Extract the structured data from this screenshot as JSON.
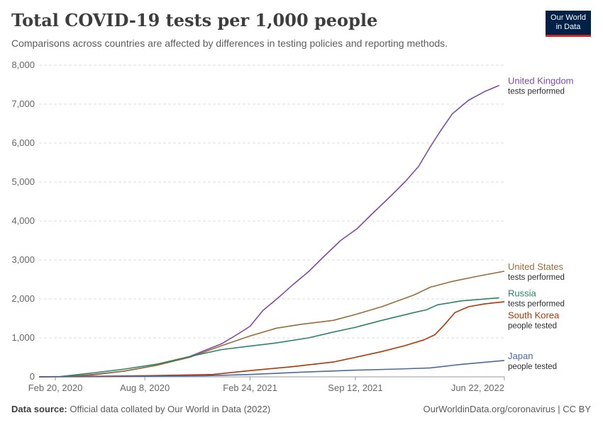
{
  "header": {
    "title": "Total COVID-19 tests per 1,000 people",
    "subtitle": "Comparisons across countries are affected by differences in testing policies and reporting methods.",
    "logo_line1": "Our World",
    "logo_line2": "in Data"
  },
  "footer": {
    "source_label": "Data source:",
    "source_text": "Official data collated by Our World in Data (2022)",
    "link_text": "OurWorldinData.org/coronavirus | CC BY"
  },
  "colors": {
    "logo_bg": "#002147",
    "logo_accent": "#ce261e",
    "gridline": "#dddddd"
  },
  "chart_data": {
    "type": "line",
    "title": "Total COVID-19 tests per 1,000 people",
    "subtitle": "Comparisons across countries are affected by differences in testing policies and reporting methods.",
    "x_range": [
      "2020-01-20",
      "2022-06-22"
    ],
    "ylim": [
      0,
      8000
    ],
    "y_ticks": [
      {
        "value": 0,
        "label": "0"
      },
      {
        "value": 1000,
        "label": "1,000"
      },
      {
        "value": 2000,
        "label": "2,000"
      },
      {
        "value": 3000,
        "label": "3,000"
      },
      {
        "value": 4000,
        "label": "4,000"
      },
      {
        "value": 5000,
        "label": "5,000"
      },
      {
        "value": 6000,
        "label": "6,000"
      },
      {
        "value": 7000,
        "label": "7,000"
      },
      {
        "value": 8000,
        "label": "8,000"
      }
    ],
    "x_ticks": [
      {
        "date": "2020-02-20",
        "label": "Feb 20, 2020"
      },
      {
        "date": "2020-08-08",
        "label": "Aug 8, 2020"
      },
      {
        "date": "2021-02-24",
        "label": "Feb 24, 2021"
      },
      {
        "date": "2021-09-12",
        "label": "Sep 12, 2021"
      },
      {
        "date": "2022-06-22",
        "label": "Jun 22, 2022"
      }
    ],
    "grid": "horizontal dashed",
    "legend": "inline labels at line ends (right)",
    "series": [
      {
        "name": "United Kingdom",
        "note": "tests performed",
        "color": "#7e4ca3",
        "points": [
          [
            "2020-01-20",
            0
          ],
          [
            "2020-03-10",
            5
          ],
          [
            "2020-05-01",
            60
          ],
          [
            "2020-07-01",
            150
          ],
          [
            "2020-09-01",
            300
          ],
          [
            "2020-11-01",
            520
          ],
          [
            "2021-01-01",
            850
          ],
          [
            "2021-02-01",
            1100
          ],
          [
            "2021-02-24",
            1300
          ],
          [
            "2021-03-20",
            1700
          ],
          [
            "2021-04-20",
            2050
          ],
          [
            "2021-05-15",
            2350
          ],
          [
            "2021-06-15",
            2700
          ],
          [
            "2021-07-15",
            3100
          ],
          [
            "2021-08-15",
            3500
          ],
          [
            "2021-09-15",
            3800
          ],
          [
            "2021-10-15",
            4200
          ],
          [
            "2021-11-15",
            4600
          ],
          [
            "2021-12-15",
            5000
          ],
          [
            "2022-01-10",
            5400
          ],
          [
            "2022-02-01",
            5900
          ],
          [
            "2022-02-20",
            6300
          ],
          [
            "2022-03-15",
            6750
          ],
          [
            "2022-04-15",
            7100
          ],
          [
            "2022-05-15",
            7320
          ],
          [
            "2022-06-12",
            7480
          ]
        ]
      },
      {
        "name": "United States",
        "note": "tests performed",
        "color": "#996d39",
        "points": [
          [
            "2020-01-20",
            0
          ],
          [
            "2020-03-10",
            5
          ],
          [
            "2020-05-01",
            50
          ],
          [
            "2020-07-01",
            150
          ],
          [
            "2020-09-01",
            300
          ],
          [
            "2020-11-01",
            500
          ],
          [
            "2021-01-01",
            800
          ],
          [
            "2021-02-24",
            1050
          ],
          [
            "2021-04-15",
            1250
          ],
          [
            "2021-06-01",
            1350
          ],
          [
            "2021-08-01",
            1450
          ],
          [
            "2021-09-12",
            1600
          ],
          [
            "2021-11-01",
            1800
          ],
          [
            "2022-01-01",
            2100
          ],
          [
            "2022-02-01",
            2300
          ],
          [
            "2022-03-15",
            2450
          ],
          [
            "2022-05-01",
            2580
          ],
          [
            "2022-06-22",
            2710
          ]
        ]
      },
      {
        "name": "Russia",
        "note": "tests performed",
        "color": "#2c8465",
        "points": [
          [
            "2020-01-20",
            0
          ],
          [
            "2020-03-01",
            10
          ],
          [
            "2020-05-01",
            100
          ],
          [
            "2020-07-01",
            200
          ],
          [
            "2020-09-01",
            330
          ],
          [
            "2020-11-01",
            520
          ],
          [
            "2021-01-01",
            700
          ],
          [
            "2021-02-24",
            790
          ],
          [
            "2021-04-15",
            870
          ],
          [
            "2021-06-15",
            1000
          ],
          [
            "2021-08-01",
            1150
          ],
          [
            "2021-09-12",
            1270
          ],
          [
            "2021-11-01",
            1450
          ],
          [
            "2022-01-01",
            1650
          ],
          [
            "2022-01-25",
            1720
          ],
          [
            "2022-02-15",
            1850
          ],
          [
            "2022-04-01",
            1950
          ],
          [
            "2022-06-12",
            2030
          ]
        ]
      },
      {
        "name": "South Korea",
        "note": "people tested",
        "color": "#b13507",
        "points": [
          [
            "2020-01-20",
            0
          ],
          [
            "2020-04-01",
            10
          ],
          [
            "2020-08-08",
            30
          ],
          [
            "2020-12-15",
            60
          ],
          [
            "2021-02-24",
            160
          ],
          [
            "2021-05-15",
            260
          ],
          [
            "2021-08-01",
            380
          ],
          [
            "2021-09-12",
            500
          ],
          [
            "2021-11-01",
            650
          ],
          [
            "2021-12-15",
            800
          ],
          [
            "2022-01-20",
            950
          ],
          [
            "2022-02-10",
            1080
          ],
          [
            "2022-03-01",
            1350
          ],
          [
            "2022-03-20",
            1650
          ],
          [
            "2022-04-15",
            1800
          ],
          [
            "2022-05-15",
            1870
          ],
          [
            "2022-06-22",
            1930
          ]
        ]
      },
      {
        "name": "Japan",
        "note": "people tested",
        "color": "#4c6a9c",
        "points": [
          [
            "2020-01-20",
            0
          ],
          [
            "2020-06-01",
            5
          ],
          [
            "2020-12-01",
            30
          ],
          [
            "2021-02-24",
            60
          ],
          [
            "2021-06-01",
            120
          ],
          [
            "2021-09-12",
            170
          ],
          [
            "2021-12-01",
            200
          ],
          [
            "2022-02-01",
            230
          ],
          [
            "2022-04-01",
            320
          ],
          [
            "2022-06-22",
            420
          ]
        ]
      }
    ]
  }
}
